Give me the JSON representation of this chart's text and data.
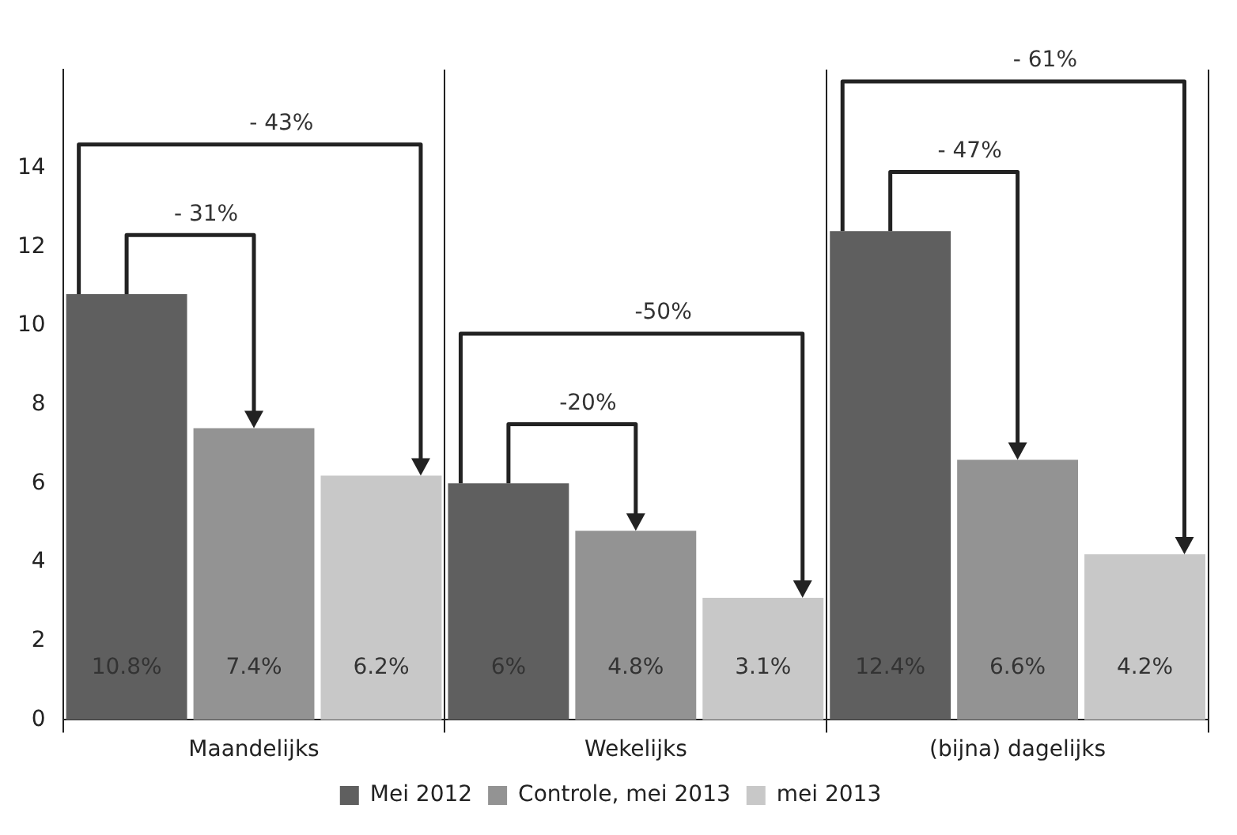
{
  "chart_data": {
    "type": "bar",
    "categories": [
      "Maandelijks",
      "Wekelijks",
      "(bijna) dagelijks"
    ],
    "series": [
      {
        "name": "Mei 2012",
        "color": "#5f5f5f",
        "values": [
          10.8,
          6,
          12.4
        ]
      },
      {
        "name": "Controle, mei 2013",
        "color": "#939393",
        "values": [
          7.4,
          4.8,
          6.6
        ]
      },
      {
        "name": "mei 2013",
        "color": "#c8c8c8",
        "values": [
          6.2,
          3.1,
          4.2
        ]
      }
    ],
    "value_labels": [
      [
        "10.8%",
        "6%",
        "12.4%"
      ],
      [
        "7.4%",
        "4.8%",
        "6.6%"
      ],
      [
        "6.2%",
        "3.1%",
        "4.2%"
      ]
    ],
    "annotations": [
      "- 31%",
      "- 43%",
      "-20%",
      "-50%",
      "- 47%",
      "- 61%"
    ],
    "ylim": [
      0,
      16.5
    ],
    "yticks": [
      0,
      2,
      4,
      6,
      8,
      10,
      12,
      14
    ],
    "grid": "x",
    "legend": "bottom"
  }
}
